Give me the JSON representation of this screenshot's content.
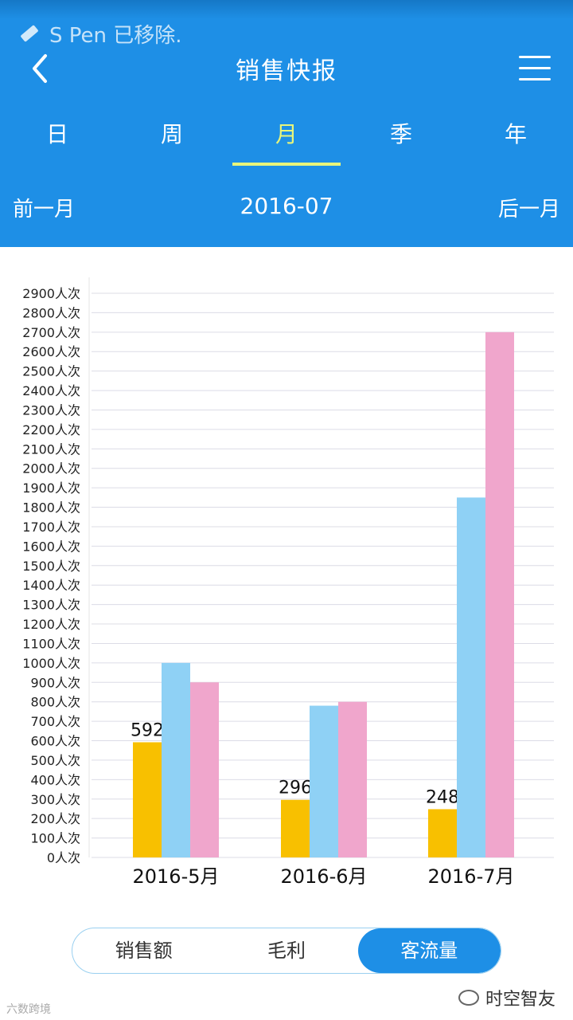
{
  "status": {
    "notification": "S Pen 已移除."
  },
  "header": {
    "title": "销售快报"
  },
  "tabs": [
    {
      "label": "日",
      "active": false
    },
    {
      "label": "周",
      "active": false
    },
    {
      "label": "月",
      "active": true
    },
    {
      "label": "季",
      "active": false
    },
    {
      "label": "年",
      "active": false
    }
  ],
  "period": {
    "prev_label": "前一月",
    "current": "2016-07",
    "next_label": "后一月"
  },
  "chart_data": {
    "type": "bar",
    "categories": [
      "2016-5月",
      "2016-6月",
      "2016-7月"
    ],
    "series": [
      {
        "color": "#f8c000",
        "values": [
          592,
          296,
          248
        ],
        "labels": [
          "592",
          "296",
          "248"
        ]
      },
      {
        "color": "#8fd1f5",
        "values": [
          1000,
          780,
          1850
        ]
      },
      {
        "color": "#f0a6cc",
        "values": [
          900,
          800,
          2700
        ]
      }
    ],
    "ylim": [
      0,
      2900
    ],
    "yticks": [
      "0人次",
      "100人次",
      "200人次",
      "300人次",
      "400人次",
      "500人次",
      "600人次",
      "700人次",
      "800人次",
      "900人次",
      "1000人次",
      "1100人次",
      "1200人次",
      "1300人次",
      "1400人次",
      "1500人次",
      "1600人次",
      "1700人次",
      "1800人次",
      "1900人次",
      "2000人次",
      "2100人次",
      "2200人次",
      "2300人次",
      "2400人次",
      "2500人次",
      "2600人次",
      "2700人次",
      "2800人次",
      "2900人次"
    ],
    "grid": true
  },
  "toggle": {
    "options": [
      {
        "label": "销售额",
        "active": false
      },
      {
        "label": "毛利",
        "active": false
      },
      {
        "label": "客流量",
        "active": true
      }
    ]
  },
  "watermark": {
    "left": "六数跨境",
    "right": "时空智友"
  }
}
